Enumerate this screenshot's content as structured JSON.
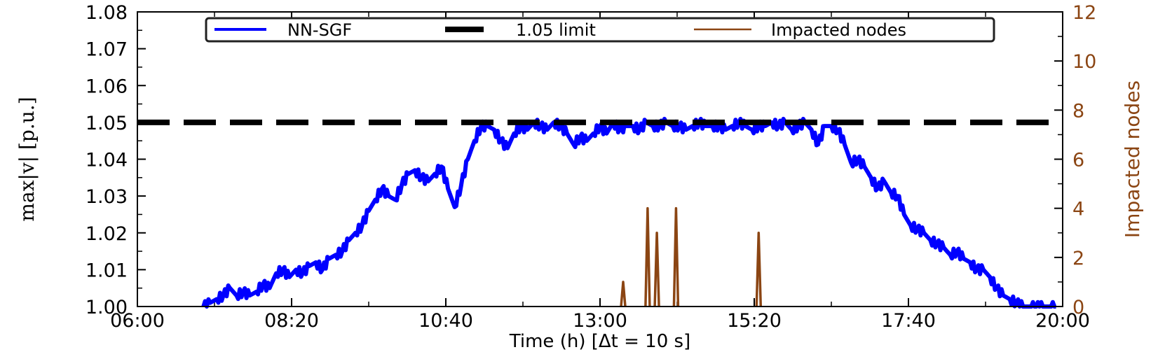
{
  "chart_data": {
    "type": "line",
    "xlabel": "Time (h)  [Δt = 10 s]",
    "ylabel": "max|v| [p.u.]",
    "y2label": "Impacted nodes",
    "x_ticks": [
      "06:00",
      "08:20",
      "10:40",
      "13:00",
      "15:20",
      "17:40",
      "20:00"
    ],
    "xlim_hours": [
      6.0,
      20.0
    ],
    "y_ticks": [
      "1.00",
      "1.01",
      "1.02",
      "1.03",
      "1.04",
      "1.05",
      "1.06",
      "1.07",
      "1.08"
    ],
    "ylim": [
      1.0,
      1.08
    ],
    "y2_ticks": [
      "0",
      "2",
      "4",
      "6",
      "8",
      "10",
      "12"
    ],
    "y2lim": [
      0,
      12
    ],
    "legend": {
      "placement": "top-center",
      "entries": [
        {
          "label": "NN-SGF",
          "color": "#0000ff",
          "style": "solid"
        },
        {
          "label": "1.05 limit",
          "color": "#000000",
          "style": "dashed"
        },
        {
          "label": "Impacted nodes",
          "color": "#8B4513",
          "style": "solid"
        }
      ]
    },
    "series": [
      {
        "name": "NN-SGF",
        "color": "#0000ff",
        "axis": "left",
        "x_hours": [
          7.0,
          7.1,
          7.2,
          7.3,
          7.4,
          7.5,
          7.6,
          7.7,
          7.8,
          7.9,
          8.0,
          8.1,
          8.2,
          8.3,
          8.4,
          8.5,
          8.6,
          8.7,
          8.8,
          8.9,
          9.0,
          9.1,
          9.2,
          9.3,
          9.4,
          9.5,
          9.6,
          9.7,
          9.8,
          9.9,
          10.0,
          10.1,
          10.2,
          10.3,
          10.4,
          10.5,
          10.6,
          10.7,
          10.8,
          10.9,
          11.0,
          11.1,
          11.2,
          11.3,
          11.4,
          11.5,
          11.6,
          11.7,
          11.8,
          11.9,
          12.0,
          12.1,
          12.2,
          12.3,
          12.4,
          12.5,
          12.6,
          12.7,
          12.8,
          12.9,
          13.0,
          13.1,
          13.2,
          13.3,
          13.4,
          13.5,
          13.6,
          13.7,
          13.8,
          13.9,
          14.0,
          14.1,
          14.2,
          14.3,
          14.4,
          14.5,
          14.6,
          14.7,
          14.8,
          14.9,
          15.0,
          15.1,
          15.2,
          15.3,
          15.4,
          15.5,
          15.6,
          15.7,
          15.8,
          15.9,
          16.0,
          16.1,
          16.2,
          16.3,
          16.4,
          16.5,
          16.6,
          16.7,
          16.8,
          16.9,
          17.0,
          17.1,
          17.2,
          17.3,
          17.4,
          17.5,
          17.6,
          17.7,
          17.8,
          17.9,
          18.0,
          18.1,
          18.2,
          18.3,
          18.4,
          18.5,
          18.6,
          18.7,
          18.8,
          18.9,
          19.0,
          19.1,
          19.2,
          19.3,
          19.4,
          19.5,
          19.6,
          19.7,
          19.8,
          19.9
        ],
        "values": [
          1.0,
          1.001,
          1.002,
          1.003,
          1.005,
          1.003,
          1.004,
          1.003,
          1.004,
          1.006,
          1.005,
          1.009,
          1.01,
          1.008,
          1.01,
          1.009,
          1.011,
          1.012,
          1.01,
          1.013,
          1.014,
          1.015,
          1.018,
          1.02,
          1.022,
          1.026,
          1.029,
          1.032,
          1.03,
          1.029,
          1.033,
          1.036,
          1.037,
          1.035,
          1.034,
          1.036,
          1.038,
          1.032,
          1.027,
          1.033,
          1.04,
          1.045,
          1.049,
          1.049,
          1.048,
          1.045,
          1.043,
          1.047,
          1.049,
          1.048,
          1.05,
          1.049,
          1.048,
          1.05,
          1.049,
          1.047,
          1.044,
          1.046,
          1.045,
          1.047,
          1.049,
          1.047,
          1.05,
          1.048,
          1.049,
          1.049,
          1.048,
          1.05,
          1.049,
          1.049,
          1.05,
          1.049,
          1.049,
          1.048,
          1.049,
          1.05,
          1.049,
          1.049,
          1.049,
          1.048,
          1.049,
          1.05,
          1.049,
          1.048,
          1.049,
          1.049,
          1.05,
          1.049,
          1.05,
          1.048,
          1.049,
          1.05,
          1.048,
          1.044,
          1.049,
          1.049,
          1.048,
          1.044,
          1.039,
          1.04,
          1.038,
          1.035,
          1.032,
          1.034,
          1.031,
          1.03,
          1.025,
          1.022,
          1.021,
          1.02,
          1.018,
          1.017,
          1.016,
          1.014,
          1.015,
          1.013,
          1.012,
          1.01,
          1.01,
          1.008,
          1.005,
          1.003,
          1.002,
          1.001,
          1.0,
          1.0,
          1.0,
          1.0,
          1.0,
          1.0
        ]
      },
      {
        "name": "1.05 limit",
        "color": "#000000",
        "axis": "left",
        "x_hours": [
          6.0,
          20.0
        ],
        "values": [
          1.05,
          1.05
        ]
      },
      {
        "name": "Impacted nodes",
        "color": "#8B4513",
        "axis": "right",
        "x_hours": [
          13.35,
          13.72,
          13.86,
          14.15,
          15.4
        ],
        "values": [
          1,
          4,
          3,
          4,
          3
        ]
      }
    ]
  }
}
